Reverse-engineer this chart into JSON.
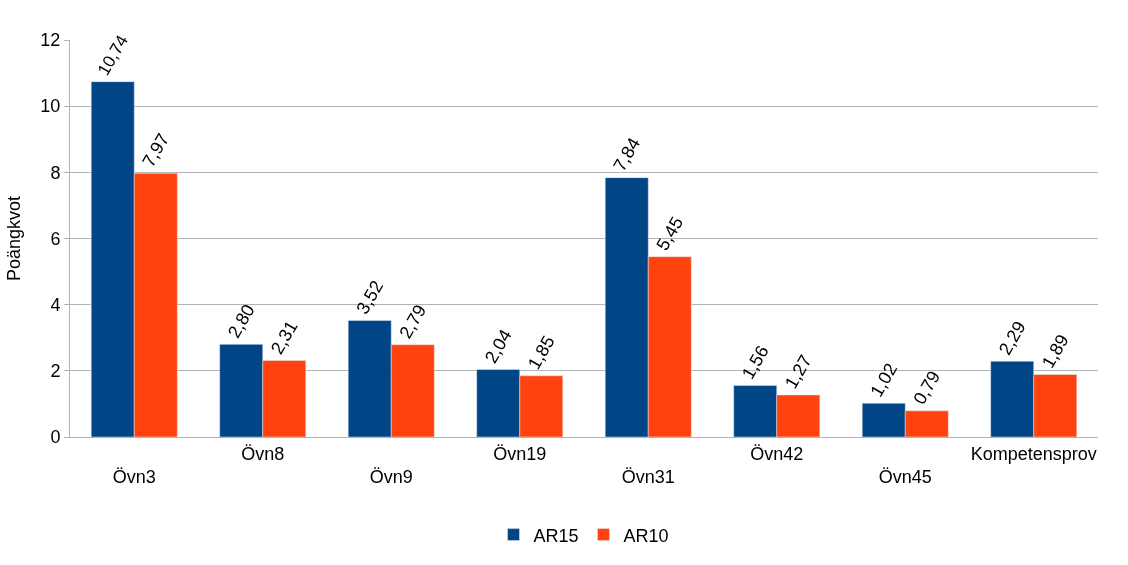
{
  "chart_data": {
    "type": "bar",
    "ylabel": "Poängkvot",
    "categories": [
      "Övn3",
      "Övn8",
      "Övn9",
      "Övn19",
      "Övn31",
      "Övn42",
      "Övn45",
      "Kompetensprov"
    ],
    "series": [
      {
        "name": "AR15",
        "color": "#004586",
        "values": [
          10.74,
          2.8,
          3.52,
          2.04,
          7.84,
          1.56,
          1.02,
          2.29
        ],
        "value_labels": [
          "10,74",
          "2,80",
          "3,52",
          "2,04",
          "7,84",
          "1,56",
          "1,02",
          "2,29"
        ]
      },
      {
        "name": "AR10",
        "color": "#ff420e",
        "values": [
          7.97,
          2.31,
          2.79,
          1.85,
          5.45,
          1.27,
          0.79,
          1.89
        ],
        "value_labels": [
          "7,97",
          "2,31",
          "2,79",
          "1,85",
          "5,45",
          "1,27",
          "0,79",
          "1,89"
        ]
      }
    ],
    "ylim": [
      0,
      12
    ],
    "yticks": [
      0,
      2,
      4,
      6,
      8,
      10,
      12
    ],
    "grid": "y",
    "legend": "bottom"
  }
}
